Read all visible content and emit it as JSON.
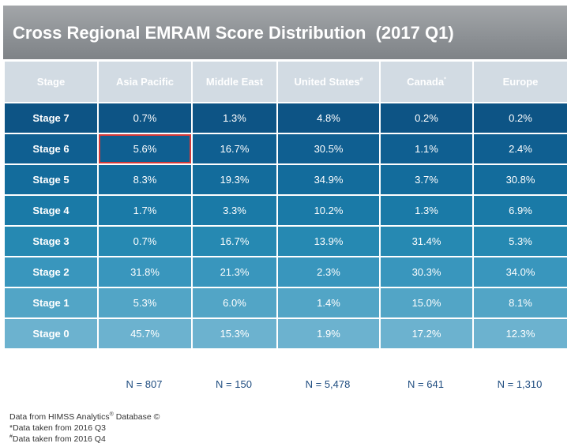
{
  "title": "Cross Regional EMRAM Score Distribution  (2017 Q1)",
  "header": {
    "stage_label": "Stage",
    "regions": [
      {
        "name": "Asia Pacific",
        "mark": ""
      },
      {
        "name": "Middle East",
        "mark": ""
      },
      {
        "name": "United States",
        "mark": "#"
      },
      {
        "name": "Canada",
        "mark": "*"
      },
      {
        "name": "Europe",
        "mark": ""
      }
    ]
  },
  "rows": [
    {
      "stage": "Stage 7",
      "values": [
        "0.7%",
        "1.3%",
        "4.8%",
        "0.2%",
        "0.2%"
      ]
    },
    {
      "stage": "Stage 6",
      "values": [
        "5.6%",
        "16.7%",
        "30.5%",
        "1.1%",
        "2.4%"
      ]
    },
    {
      "stage": "Stage 5",
      "values": [
        "8.3%",
        "19.3%",
        "34.9%",
        "3.7%",
        "30.8%"
      ]
    },
    {
      "stage": "Stage 4",
      "values": [
        "1.7%",
        "3.3%",
        "10.2%",
        "1.3%",
        "6.9%"
      ]
    },
    {
      "stage": "Stage 3",
      "values": [
        "0.7%",
        "16.7%",
        "13.9%",
        "31.4%",
        "5.3%"
      ]
    },
    {
      "stage": "Stage 2",
      "values": [
        "31.8%",
        "21.3%",
        "2.3%",
        "30.3%",
        "34.0%"
      ]
    },
    {
      "stage": "Stage 1",
      "values": [
        "5.3%",
        "6.0%",
        "1.4%",
        "15.0%",
        "8.1%"
      ]
    },
    {
      "stage": "Stage 0",
      "values": [
        "45.7%",
        "15.3%",
        "1.9%",
        "17.2%",
        "12.3%"
      ]
    }
  ],
  "row_colors": [
    "#0d5485",
    "#0f5f91",
    "#136c9c",
    "#1a7aa7",
    "#2689b2",
    "#3996bd",
    "#52a5c6",
    "#6cb2cf"
  ],
  "highlight": {
    "stage": "Stage 6",
    "region": "Asia Pacific"
  },
  "sample_sizes": [
    "N = 807",
    "N = 150",
    "N = 5,478",
    "N = 641",
    "N = 1,310"
  ],
  "footnotes": {
    "source_text": "Data from HIMSS Analytics",
    "source_mark": "®",
    "source_suffix": " Database ©",
    "note1": "*Data taken from 2016 Q3",
    "note2_mark": "#",
    "note2_text": "Data taken from 2016 Q4"
  }
}
